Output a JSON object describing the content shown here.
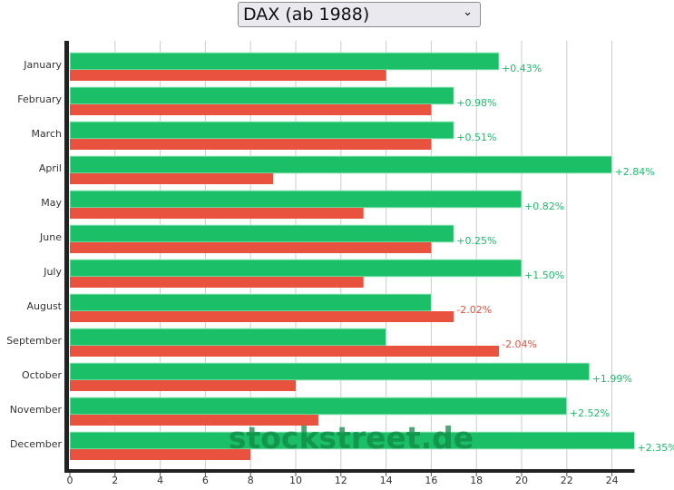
{
  "selector": {
    "value": "DAX (ab 1988)"
  },
  "watermark": "stockstreet.de",
  "colors": {
    "up": "#1abf68",
    "down": "#e8523f",
    "axis": "#222222",
    "grid": "#cccccc"
  },
  "chart_data": {
    "type": "bar",
    "orientation": "horizontal",
    "categories": [
      "January",
      "February",
      "March",
      "April",
      "May",
      "June",
      "July",
      "August",
      "September",
      "October",
      "November",
      "December"
    ],
    "series": [
      {
        "values": [
          19,
          17,
          17,
          24,
          20,
          17,
          20,
          16,
          14,
          23,
          22,
          25
        ],
        "color": "#1abf68"
      },
      {
        "values": [
          14,
          16,
          16,
          9,
          13,
          16,
          13,
          17,
          19,
          10,
          11,
          8
        ],
        "color": "#e8523f"
      }
    ],
    "annotations": [
      "+0.43%",
      "+0.98%",
      "+0.51%",
      "+2.84%",
      "+0.82%",
      "+0.25%",
      "+1.50%",
      "-2.02%",
      "-2.04%",
      "+1.99%",
      "+2.52%",
      "+2.35%"
    ],
    "xticks": [
      0,
      2,
      4,
      6,
      8,
      10,
      12,
      14,
      16,
      18,
      20,
      22,
      24
    ],
    "xlim": [
      0,
      25
    ],
    "grid": true
  }
}
